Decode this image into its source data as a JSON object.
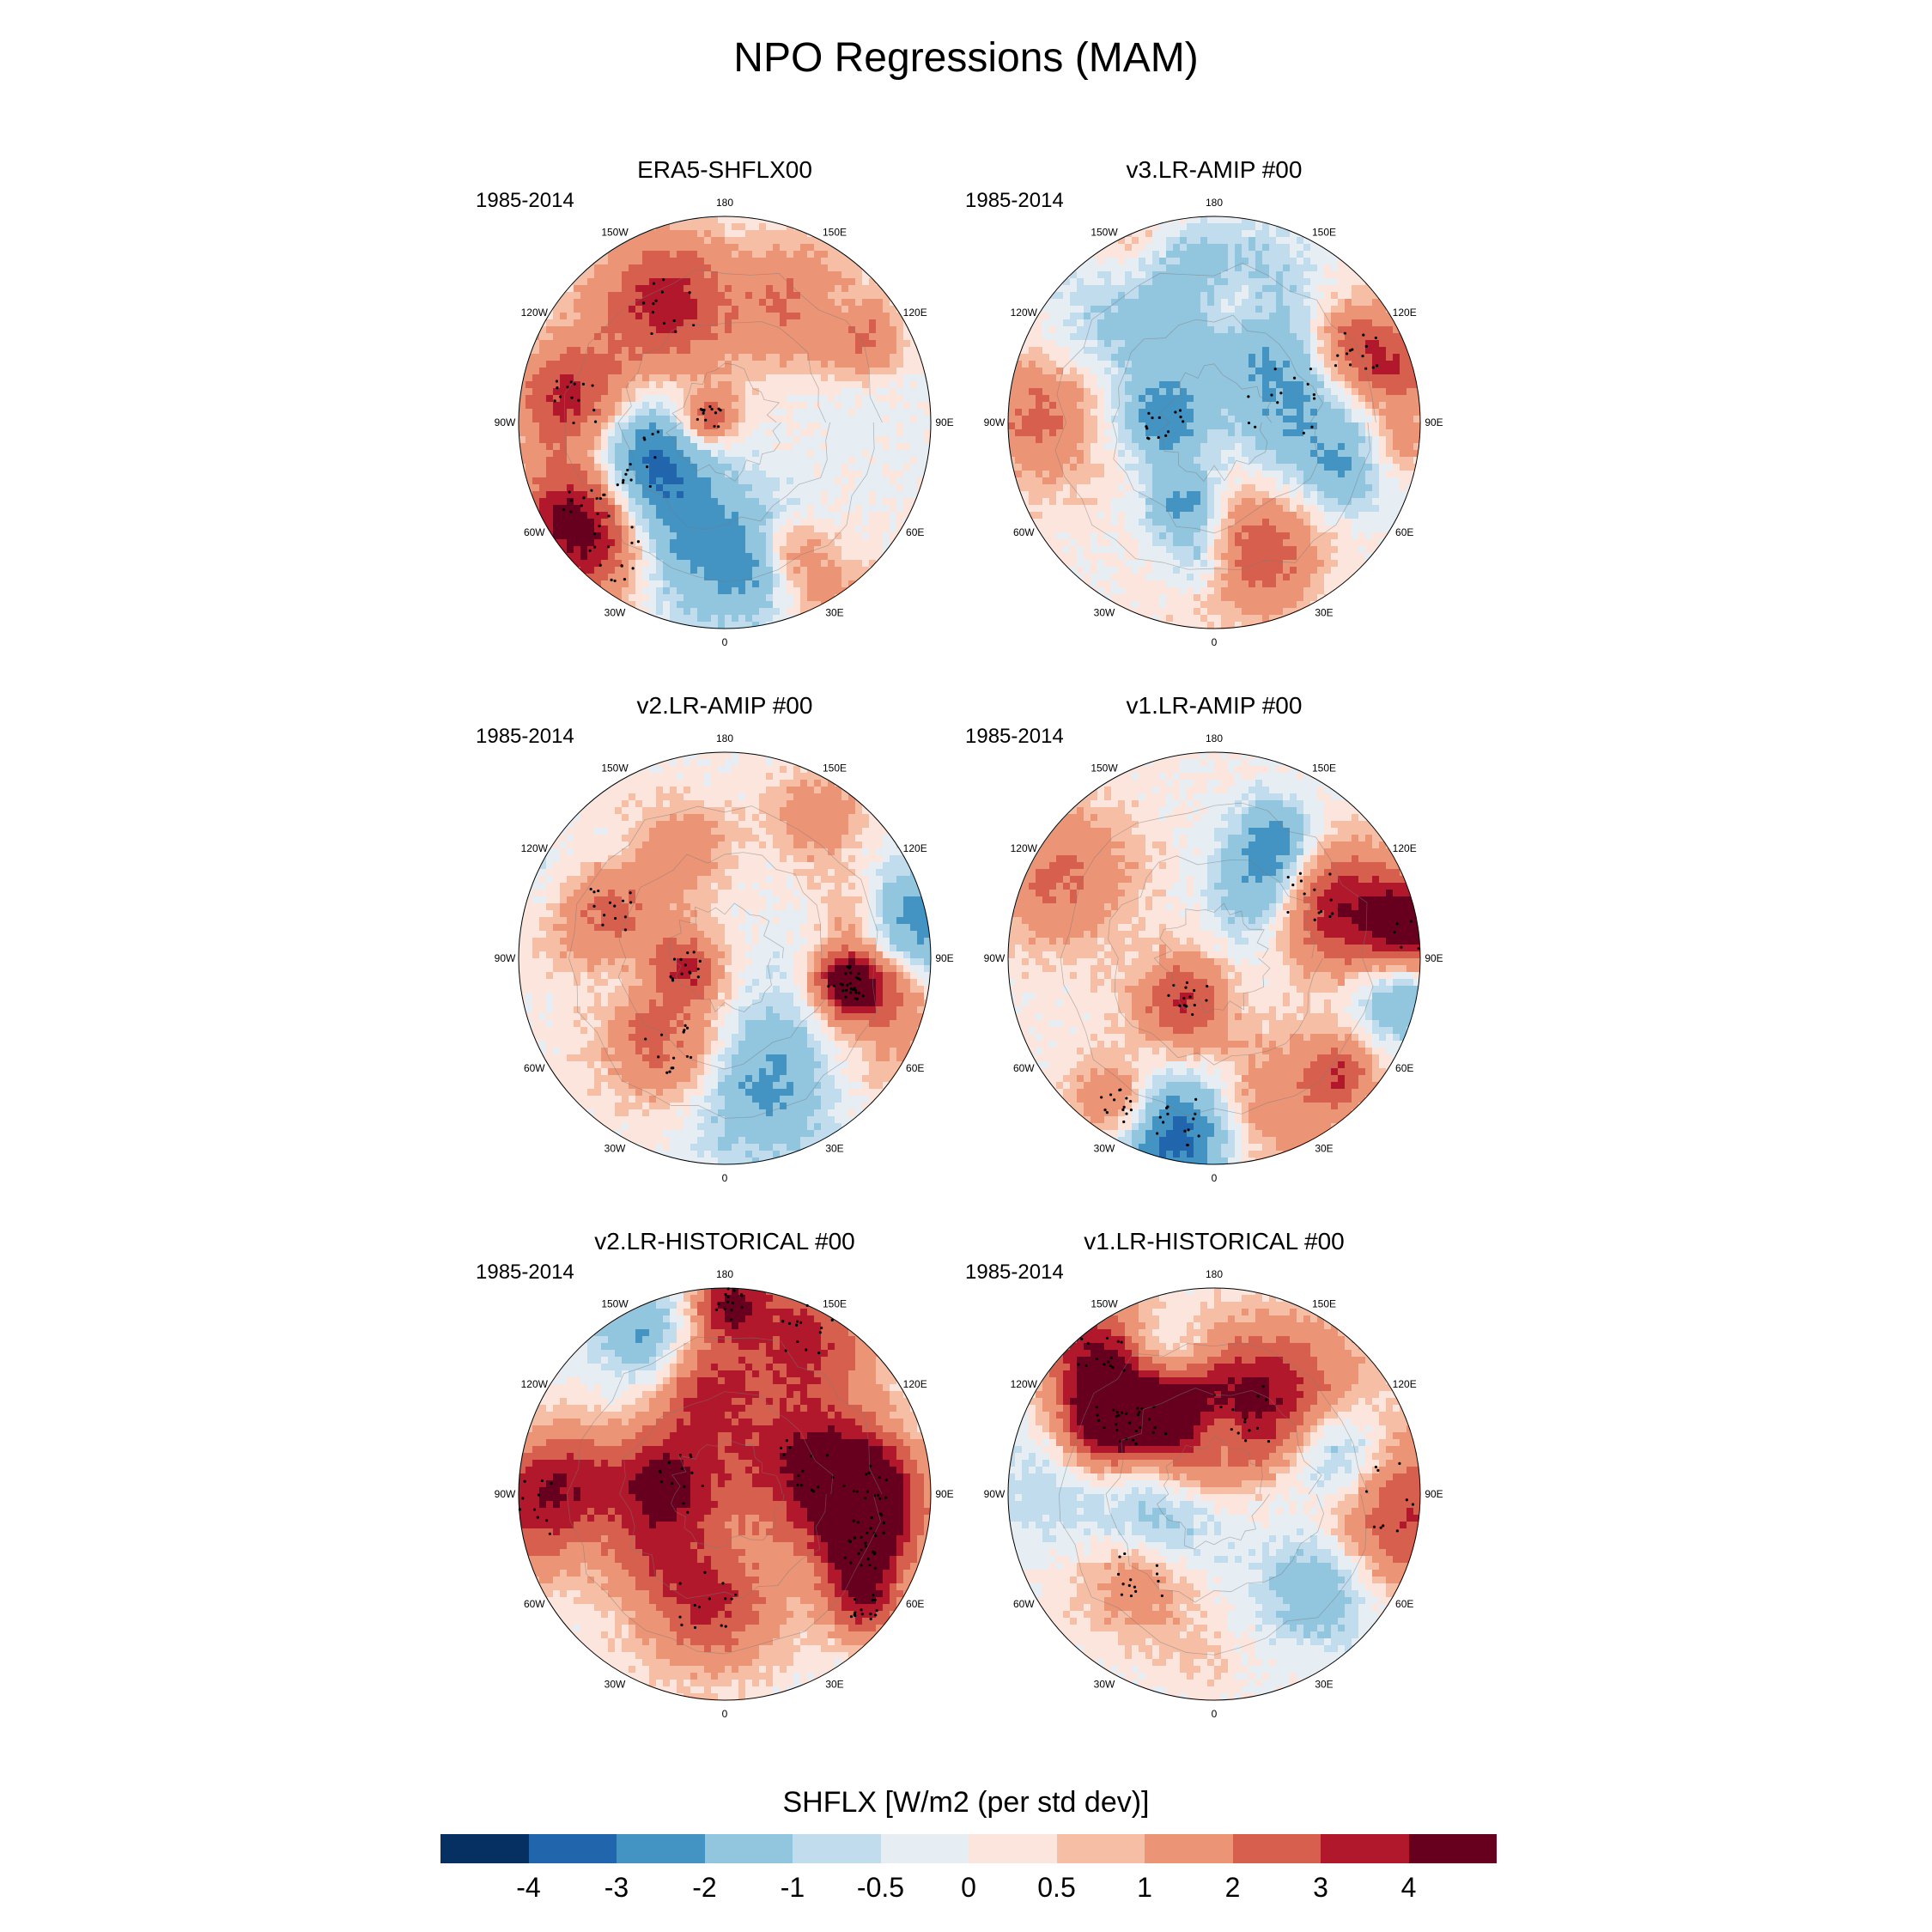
{
  "title": "NPO Regressions (MAM)",
  "panels": [
    {
      "id": "p1",
      "title": "ERA5-SHFLX00",
      "period": "1985-2014"
    },
    {
      "id": "p2",
      "title": "v3.LR-AMIP  #00",
      "period": "1985-2014"
    },
    {
      "id": "p3",
      "title": "v2.LR-AMIP  #00",
      "period": "1985-2014"
    },
    {
      "id": "p4",
      "title": "v1.LR-AMIP  #00",
      "period": "1985-2014"
    },
    {
      "id": "p5",
      "title": "v2.LR-HISTORICAL  #00",
      "period": "1985-2014"
    },
    {
      "id": "p6",
      "title": "v1.LR-HISTORICAL  #00",
      "period": "1985-2014"
    }
  ],
  "longitude_labels": [
    "180",
    "150E",
    "120E",
    "90E",
    "60E",
    "30E",
    "0",
    "30W",
    "60W",
    "90W",
    "120W",
    "150W"
  ],
  "colorbar": {
    "title": "SHFLX [W/m2 (per std dev)]",
    "levels": [
      "-4",
      "-3",
      "-2",
      "-1",
      "-0.5",
      "0",
      "0.5",
      "1",
      "2",
      "3",
      "4"
    ],
    "colors": [
      "#053061",
      "#2166ac",
      "#4393c3",
      "#92c5de",
      "#c0dced",
      "#e6eef4",
      "#fbe5dc",
      "#f6bfa5",
      "#ec9476",
      "#d6604d",
      "#b2182b",
      "#67001f"
    ]
  },
  "chart_data": {
    "type": "heatmap",
    "projection": "north polar stereographic",
    "variable": "SHFLX",
    "units": "W/m2 (per std dev)",
    "season": "MAM",
    "period": "1985-2014",
    "panels": [
      "ERA5-SHFLX00",
      "v3.LR-AMIP  #00",
      "v2.LR-AMIP  #00",
      "v1.LR-AMIP  #00",
      "v2.LR-HISTORICAL  #00",
      "v1.LR-HISTORICAL  #00"
    ],
    "contour_levels": [
      -4,
      -3,
      -2,
      -1,
      -0.5,
      0,
      0.5,
      1,
      2,
      3,
      4
    ]
  }
}
